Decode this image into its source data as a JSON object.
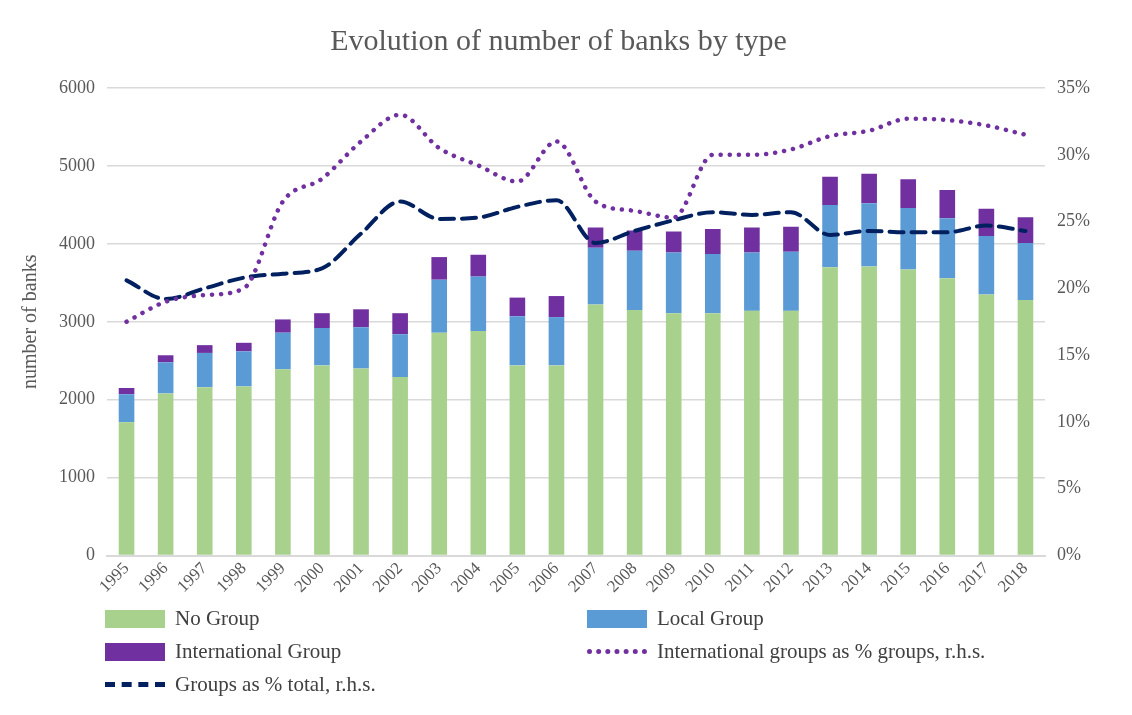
{
  "chart_data": {
    "type": "bar",
    "title": "Evolution of number of banks by type",
    "ylabel": "number of banks",
    "categories": [
      "1995",
      "1996",
      "1997",
      "1998",
      "1999",
      "2000",
      "2001",
      "2002",
      "2003",
      "2004",
      "2005",
      "2006",
      "2007",
      "2008",
      "2009",
      "2010",
      "2011",
      "2012",
      "2013",
      "2014",
      "2015",
      "2016",
      "2017",
      "2018"
    ],
    "stacked": true,
    "series": [
      {
        "name": "No Group",
        "color": "#a9d18e",
        "values": [
          1710,
          2080,
          2160,
          2170,
          2390,
          2440,
          2400,
          2290,
          2860,
          2880,
          2440,
          2440,
          3220,
          3150,
          3110,
          3110,
          3140,
          3140,
          3700,
          3710,
          3670,
          3560,
          3350,
          3280
        ]
      },
      {
        "name": "Local Group",
        "color": "#5b9bd5",
        "values": [
          360,
          400,
          440,
          450,
          470,
          480,
          530,
          550,
          680,
          700,
          630,
          620,
          730,
          760,
          780,
          760,
          750,
          760,
          800,
          810,
          790,
          770,
          750,
          730
        ]
      },
      {
        "name": "International Group",
        "color": "#7030a0",
        "values": [
          80,
          90,
          100,
          110,
          170,
          190,
          230,
          270,
          290,
          280,
          240,
          270,
          260,
          260,
          270,
          320,
          320,
          320,
          360,
          380,
          370,
          360,
          350,
          330
        ]
      },
      {
        "name": "International groups as % groups, r.h.s.",
        "type": "line",
        "axis": "y2",
        "line_style": "dotted",
        "color": "#7030a0",
        "values": [
          17.5,
          19,
          19.5,
          20,
          26.5,
          28.2,
          31,
          33,
          30.5,
          29.2,
          28,
          31,
          26.5,
          25.8,
          25.3,
          30,
          30,
          30.4,
          31.4,
          31.8,
          32.7,
          32.6,
          32.2,
          31.5
        ]
      },
      {
        "name": "Groups as % total, r.h.s.",
        "type": "line",
        "axis": "y2",
        "line_style": "dashed",
        "color": "#002060",
        "values": [
          20.6,
          19.2,
          20,
          20.8,
          21.1,
          21.5,
          24.1,
          26.5,
          25.2,
          25.3,
          26.1,
          26.6,
          23.4,
          24.3,
          25.1,
          25.7,
          25.5,
          25.7,
          24,
          24.3,
          24.2,
          24.2,
          24.7,
          24.3
        ]
      }
    ],
    "ylim": [
      0,
      6000
    ],
    "yticks": [
      0,
      1000,
      2000,
      3000,
      4000,
      5000,
      6000
    ],
    "y2lim": [
      0,
      35
    ],
    "y2ticks": [
      {
        "value": 0,
        "label": "0%"
      },
      {
        "value": 5,
        "label": "5%"
      },
      {
        "value": 10,
        "label": "10%"
      },
      {
        "value": 15,
        "label": "15%"
      },
      {
        "value": 20,
        "label": "20%"
      },
      {
        "value": 25,
        "label": "25%"
      },
      {
        "value": 30,
        "label": "30%"
      },
      {
        "value": 35,
        "label": "35%"
      }
    ],
    "grid": "y",
    "legend": "bottom",
    "marker": "none"
  }
}
